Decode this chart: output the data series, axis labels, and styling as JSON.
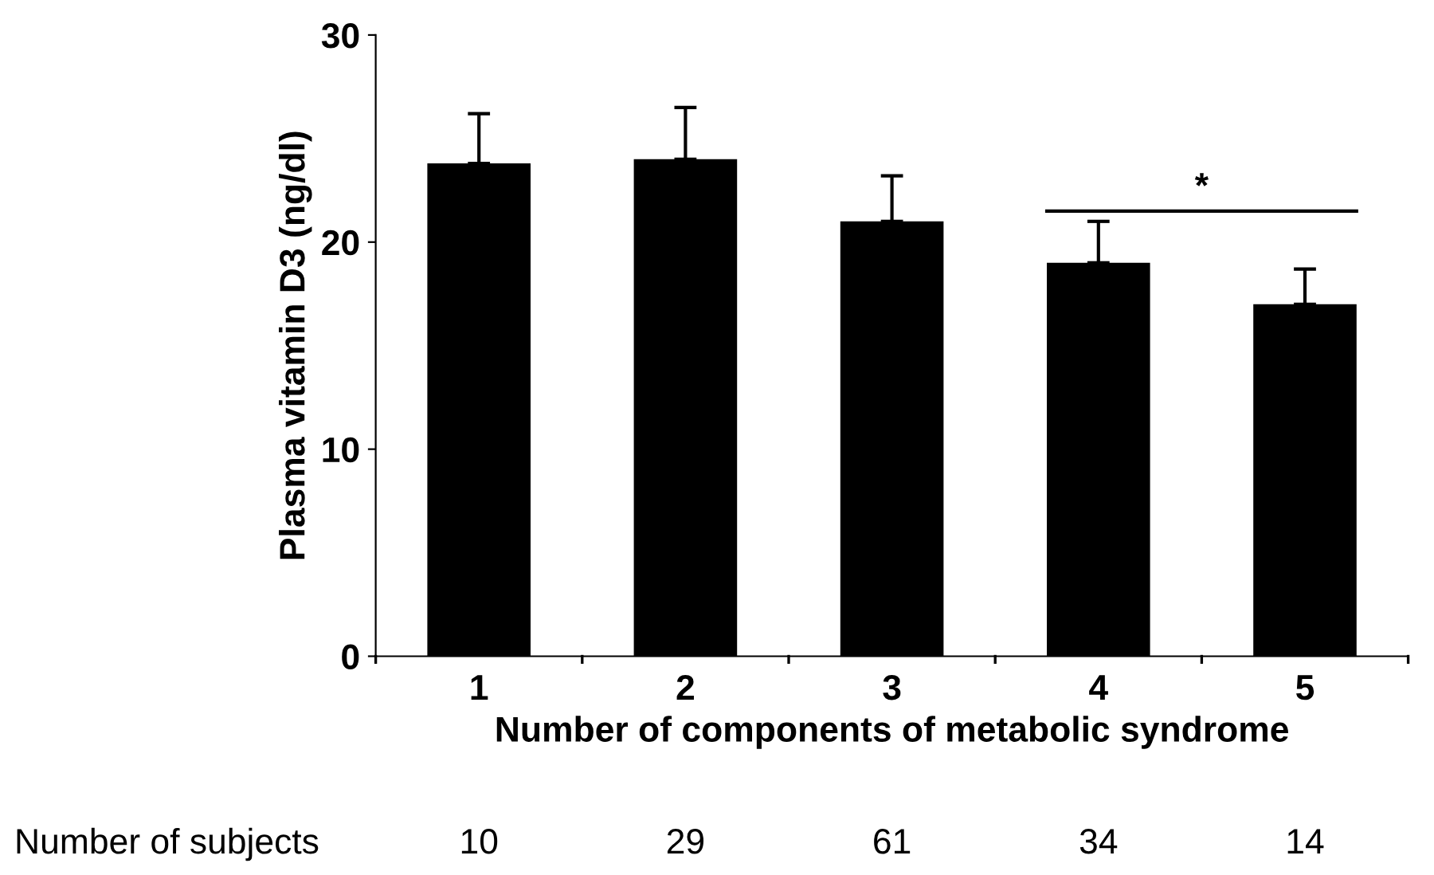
{
  "chart_data": {
    "type": "bar",
    "xlabel": "Number of components of metabolic syndrome",
    "ylabel": "Plasma vitamin D3 (ng/dl)",
    "categories": [
      "1",
      "2",
      "3",
      "4",
      "5"
    ],
    "values": [
      23.8,
      24.0,
      21.0,
      19.0,
      17.0
    ],
    "errors": [
      [
        23.8,
        26.2
      ],
      [
        24.0,
        26.5
      ],
      [
        21.0,
        23.2
      ],
      [
        19.0,
        21.0
      ],
      [
        17.0,
        18.7
      ]
    ],
    "color": "#000000",
    "ylim": [
      0,
      30
    ],
    "yticks": [
      0,
      10,
      20,
      30
    ],
    "grid": false,
    "annotations": [
      "*",
      "Number of subjects",
      "10",
      "29",
      "61",
      "34",
      "14"
    ]
  }
}
